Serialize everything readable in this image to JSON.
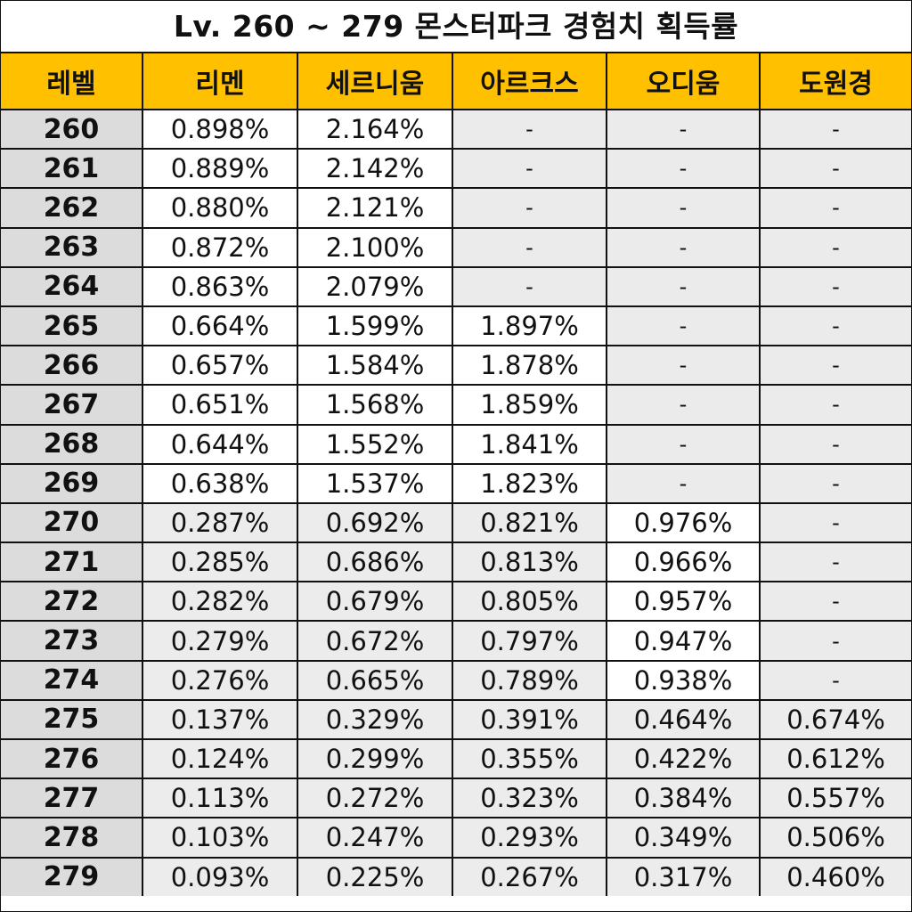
{
  "title": "Lv. 260 ~ 279 몬스터파크 경험치 획득률",
  "headers": [
    "레벨",
    "리멘",
    "세르니움",
    "아르크스",
    "오디움",
    "도원경"
  ],
  "colors": {
    "header_bg": "#ffc000",
    "level_bg": "#dcdcdc",
    "value_bg": "#ffffff",
    "empty_bg": "#ebebeb",
    "border": "#111111"
  },
  "rows": [
    {
      "level": "260",
      "cells": [
        "0.898%",
        "2.164%",
        "-",
        "-",
        "-"
      ]
    },
    {
      "level": "261",
      "cells": [
        "0.889%",
        "2.142%",
        "-",
        "-",
        "-"
      ]
    },
    {
      "level": "262",
      "cells": [
        "0.880%",
        "2.121%",
        "-",
        "-",
        "-"
      ]
    },
    {
      "level": "263",
      "cells": [
        "0.872%",
        "2.100%",
        "-",
        "-",
        "-"
      ]
    },
    {
      "level": "264",
      "cells": [
        "0.863%",
        "2.079%",
        "-",
        "-",
        "-"
      ]
    },
    {
      "level": "265",
      "cells": [
        "0.664%",
        "1.599%",
        "1.897%",
        "-",
        "-"
      ]
    },
    {
      "level": "266",
      "cells": [
        "0.657%",
        "1.584%",
        "1.878%",
        "-",
        "-"
      ]
    },
    {
      "level": "267",
      "cells": [
        "0.651%",
        "1.568%",
        "1.859%",
        "-",
        "-"
      ]
    },
    {
      "level": "268",
      "cells": [
        "0.644%",
        "1.552%",
        "1.841%",
        "-",
        "-"
      ]
    },
    {
      "level": "269",
      "cells": [
        "0.638%",
        "1.537%",
        "1.823%",
        "-",
        "-"
      ]
    },
    {
      "level": "270",
      "cells": [
        "0.287%",
        "0.692%",
        "0.821%",
        "0.976%",
        "-"
      ]
    },
    {
      "level": "271",
      "cells": [
        "0.285%",
        "0.686%",
        "0.813%",
        "0.966%",
        "-"
      ]
    },
    {
      "level": "272",
      "cells": [
        "0.282%",
        "0.679%",
        "0.805%",
        "0.957%",
        "-"
      ]
    },
    {
      "level": "273",
      "cells": [
        "0.279%",
        "0.672%",
        "0.797%",
        "0.947%",
        "-"
      ]
    },
    {
      "level": "274",
      "cells": [
        "0.276%",
        "0.665%",
        "0.789%",
        "0.938%",
        "-"
      ]
    },
    {
      "level": "275",
      "cells": [
        "0.137%",
        "0.329%",
        "0.391%",
        "0.464%",
        "0.674%"
      ]
    },
    {
      "level": "276",
      "cells": [
        "0.124%",
        "0.299%",
        "0.355%",
        "0.422%",
        "0.612%"
      ]
    },
    {
      "level": "277",
      "cells": [
        "0.113%",
        "0.272%",
        "0.323%",
        "0.384%",
        "0.557%"
      ]
    },
    {
      "level": "278",
      "cells": [
        "0.103%",
        "0.247%",
        "0.293%",
        "0.349%",
        "0.506%"
      ]
    },
    {
      "level": "279",
      "cells": [
        "0.093%",
        "0.225%",
        "0.267%",
        "0.317%",
        "0.460%"
      ]
    }
  ]
}
